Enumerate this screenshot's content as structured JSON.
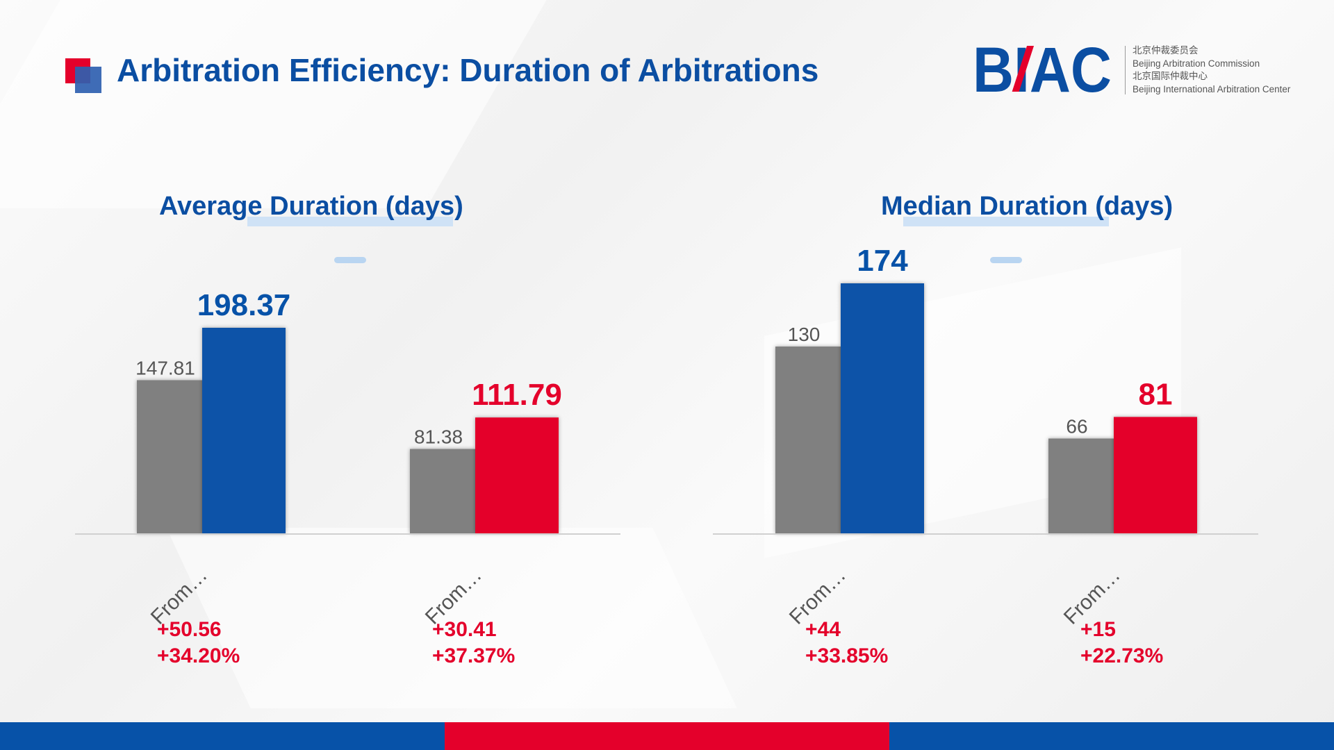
{
  "title": "Arbitration Efficiency: Duration of Arbitrations",
  "logo": {
    "mark": "BIAC",
    "line1": "北京仲裁委员会",
    "line2": "Beijing Arbitration Commission",
    "line3": "北京国际仲裁中心",
    "line4": "Beijing International Arbitration Center"
  },
  "colors": {
    "brand_blue": "#0b4ea2",
    "bar_blue": "#0752a8",
    "bar_red": "#e4002b",
    "bar_gray": "#808080"
  },
  "chart_data": [
    {
      "type": "bar",
      "title": "Average Duration (days)",
      "categories": [
        "From…",
        "From…"
      ],
      "groups": [
        {
          "values": [
            147.81,
            198.37
          ],
          "colors": [
            "#808080",
            "#0752a8"
          ]
        },
        {
          "values": [
            81.38,
            111.79
          ],
          "colors": [
            "#808080",
            "#e4002b"
          ]
        }
      ],
      "changes": [
        {
          "abs": "+50.56",
          "pct": "+34.20%"
        },
        {
          "abs": "+30.41",
          "pct": "+37.37%"
        }
      ]
    },
    {
      "type": "bar",
      "title": "Median Duration (days)",
      "categories": [
        "From…",
        "From…"
      ],
      "groups": [
        {
          "values": [
            130,
            174
          ],
          "colors": [
            "#808080",
            "#0752a8"
          ]
        },
        {
          "values": [
            66,
            81
          ],
          "colors": [
            "#808080",
            "#e4002b"
          ]
        }
      ],
      "changes": [
        {
          "abs": "+44",
          "pct": "+33.85%"
        },
        {
          "abs": "+15",
          "pct": "+22.73%"
        }
      ]
    }
  ]
}
